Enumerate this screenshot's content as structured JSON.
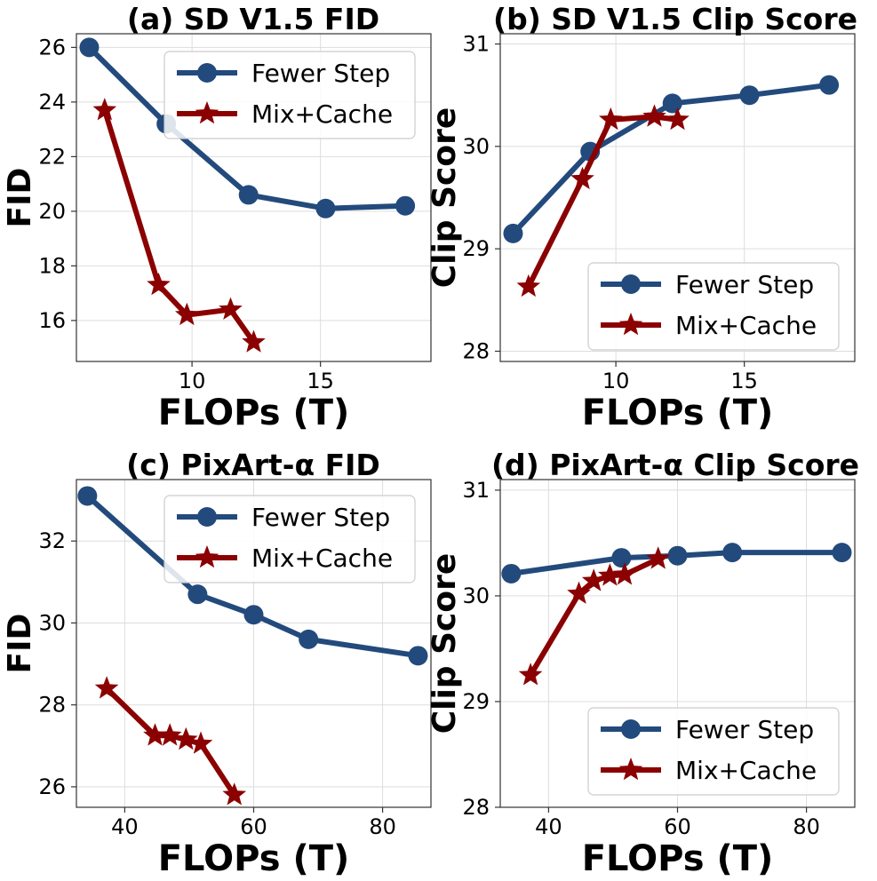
{
  "colors": {
    "fewer_step": "#234a7c",
    "mix_cache": "#8b0000",
    "grid": "#dddddd",
    "axes": "#333333"
  },
  "chart_data": [
    {
      "type": "line",
      "title": "(a) SD V1.5 FID",
      "xlabel": "FLOPs (T)",
      "ylabel": "FID",
      "xlim": [
        5.5,
        19.3
      ],
      "ylim": [
        14.5,
        26.5
      ],
      "xticks": [
        10,
        15
      ],
      "yticks": [
        16,
        18,
        20,
        22,
        24,
        26
      ],
      "grid": true,
      "legend_position": "upper right",
      "series": [
        {
          "name": "Fewer Step",
          "marker": "circle",
          "color": "#234a7c",
          "x": [
            6.0,
            9.0,
            12.2,
            15.2,
            18.3
          ],
          "y": [
            26.0,
            23.2,
            20.6,
            20.1,
            20.2
          ]
        },
        {
          "name": "Mix+Cache",
          "marker": "star",
          "color": "#8b0000",
          "x": [
            6.6,
            8.7,
            9.8,
            11.5,
            12.4
          ],
          "y": [
            23.7,
            17.3,
            16.2,
            16.4,
            15.2
          ]
        }
      ]
    },
    {
      "type": "line",
      "title": "(b) SD V1.5 Clip Score",
      "xlabel": "FLOPs (T)",
      "ylabel": "Clip Score",
      "xlim": [
        5.5,
        19.3
      ],
      "ylim": [
        27.9,
        31.1
      ],
      "xticks": [
        10,
        15
      ],
      "yticks": [
        28,
        29,
        30,
        31
      ],
      "grid": true,
      "legend_position": "lower right",
      "series": [
        {
          "name": "Fewer Step",
          "marker": "circle",
          "color": "#234a7c",
          "x": [
            6.0,
            9.0,
            12.2,
            15.2,
            18.3
          ],
          "y": [
            29.15,
            29.95,
            30.42,
            30.5,
            30.6
          ]
        },
        {
          "name": "Mix+Cache",
          "marker": "star",
          "color": "#8b0000",
          "x": [
            6.6,
            8.7,
            9.8,
            11.5,
            12.4
          ],
          "y": [
            28.63,
            29.68,
            30.26,
            30.29,
            30.26
          ]
        }
      ]
    },
    {
      "type": "line",
      "title": "(c) PixArt-α FID",
      "xlabel": "FLOPs (T)",
      "ylabel": "FID",
      "xlim": [
        32.5,
        87.5
      ],
      "ylim": [
        25.5,
        33.5
      ],
      "xticks": [
        40,
        60,
        80
      ],
      "yticks": [
        26,
        28,
        30,
        32
      ],
      "grid": true,
      "legend_position": "upper right",
      "series": [
        {
          "name": "Fewer Step",
          "marker": "circle",
          "color": "#234a7c",
          "x": [
            34.2,
            51.3,
            60.0,
            68.5,
            85.5
          ],
          "y": [
            33.1,
            30.7,
            30.2,
            29.6,
            29.2
          ]
        },
        {
          "name": "Mix+Cache",
          "marker": "star",
          "color": "#8b0000",
          "x": [
            37.2,
            44.7,
            47.0,
            49.5,
            51.8,
            57.0
          ],
          "y": [
            28.4,
            27.25,
            27.25,
            27.15,
            27.05,
            25.8
          ]
        }
      ]
    },
    {
      "type": "line",
      "title": "(d) PixArt-α Clip Score",
      "xlabel": "FLOPs (T)",
      "ylabel": "Clip Score",
      "xlim": [
        32.5,
        87.5
      ],
      "ylim": [
        28.0,
        31.1
      ],
      "xticks": [
        40,
        60,
        80
      ],
      "yticks": [
        28,
        29,
        30,
        31
      ],
      "grid": true,
      "legend_position": "lower right",
      "series": [
        {
          "name": "Fewer Step",
          "marker": "circle",
          "color": "#234a7c",
          "x": [
            34.2,
            51.3,
            60.0,
            68.5,
            85.5
          ],
          "y": [
            30.21,
            30.36,
            30.38,
            30.41,
            30.41
          ]
        },
        {
          "name": "Mix+Cache",
          "marker": "star",
          "color": "#8b0000",
          "x": [
            37.2,
            44.7,
            47.0,
            49.5,
            51.8,
            57.0
          ],
          "y": [
            29.25,
            30.02,
            30.14,
            30.19,
            30.2,
            30.35
          ]
        }
      ]
    }
  ]
}
